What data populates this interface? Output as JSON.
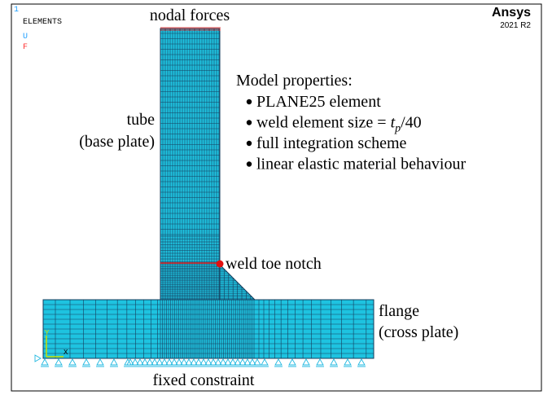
{
  "header": {
    "window_number": "1",
    "view": "ELEMENTS",
    "legend_u": "U",
    "legend_f": "F",
    "brand": "Ansys",
    "version": "2021 R2"
  },
  "annotations": {
    "top": "nodal forces",
    "tube": "tube",
    "tube_note": "(base plate)",
    "weld": "weld toe notch",
    "flange": "flange",
    "flange_note": "(cross plate)",
    "bottom": "fixed constraint"
  },
  "properties": {
    "title": "Model properties:",
    "items": [
      {
        "text": "PLANE25 element"
      },
      {
        "text": "weld element size = ",
        "math": "t",
        "sub": "p",
        "tail": "/40"
      },
      {
        "text": "full integration scheme"
      },
      {
        "text": "linear elastic material behaviour"
      }
    ]
  },
  "axes": {
    "y": "Y",
    "x": "X"
  }
}
